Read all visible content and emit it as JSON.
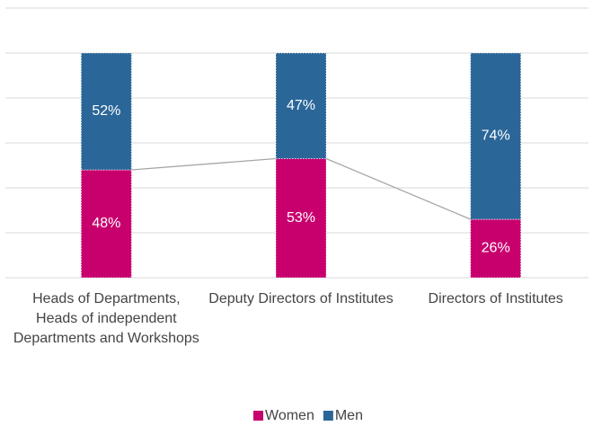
{
  "chart_data": {
    "type": "stacked_bar",
    "categories": [
      "Heads of Departments, Heads of independent Departments and Workshops",
      "Deputy Directors of Institutes",
      "Directors of Institutes"
    ],
    "series": [
      {
        "name": "Women",
        "color": "#c8006e",
        "values": [
          48,
          53,
          26
        ],
        "value_labels": [
          "48%",
          "53%",
          "26%"
        ]
      },
      {
        "name": "Men",
        "color": "#2b6699",
        "values": [
          52,
          47,
          74
        ],
        "value_labels": [
          "52%",
          "47%",
          "74%"
        ]
      }
    ],
    "ylim": [
      0,
      120
    ],
    "yticks": [
      0,
      20,
      40,
      60,
      80,
      100,
      120
    ],
    "grid": true,
    "legend": "bottom"
  }
}
